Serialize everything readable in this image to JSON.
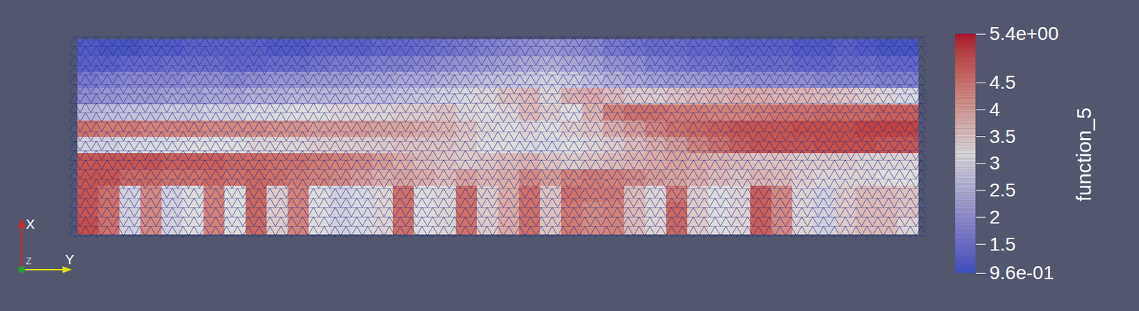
{
  "chart_data": {
    "type": "heatmap",
    "tick_labels": false,
    "triad": {
      "x": "X",
      "y": "Y",
      "z": "Z"
    },
    "colorbar_label": "function_5",
    "colorbar_range": [
      0.96,
      5.4
    ],
    "colorbar_ticks": [
      {
        "value": 5.4,
        "label": "5.4e+00"
      },
      4.5,
      4,
      3.5,
      3,
      2.5,
      2,
      1.5,
      {
        "value": 0.96,
        "label": "9.6e-01"
      }
    ],
    "cells": [
      [
        1.2,
        1.1,
        1.1,
        1.2,
        1.2,
        1.3,
        1.3,
        1.3,
        1.3,
        1.2,
        1.2,
        1.3,
        1.3,
        1.3,
        1.4,
        1.4,
        1.5,
        1.6,
        1.7,
        1.8,
        1.9,
        2.0,
        2.1,
        2.0,
        1.9,
        1.7,
        1.6,
        1.5,
        1.5,
        1.4,
        1.4,
        1.3,
        1.3,
        1.3,
        1.2,
        1.2,
        1.3,
        1.2,
        1.1,
        1.1
      ],
      [
        1.3,
        1.3,
        1.4,
        1.4,
        1.5,
        1.5,
        1.5,
        1.4,
        1.4,
        1.5,
        1.5,
        1.6,
        1.7,
        1.7,
        1.8,
        1.8,
        1.9,
        2.0,
        2.1,
        2.2,
        2.3,
        2.4,
        2.5,
        2.4,
        2.3,
        2.1,
        2.0,
        1.8,
        1.7,
        1.6,
        1.6,
        1.5,
        1.5,
        1.5,
        1.4,
        1.4,
        1.5,
        1.5,
        1.4,
        1.4
      ],
      [
        1.7,
        1.8,
        1.9,
        1.9,
        1.9,
        2.0,
        2.0,
        1.9,
        2.0,
        2.1,
        2.1,
        2.2,
        2.2,
        2.3,
        2.3,
        2.4,
        2.4,
        2.5,
        2.6,
        2.7,
        2.8,
        2.9,
        3.0,
        2.9,
        2.7,
        2.5,
        2.4,
        2.3,
        2.2,
        2.2,
        2.1,
        2.1,
        2.0,
        2.0,
        2.0,
        1.9,
        1.9,
        1.9,
        1.8,
        1.8
      ],
      [
        2.0,
        2.1,
        2.2,
        2.2,
        2.3,
        2.3,
        2.4,
        2.4,
        2.5,
        2.5,
        2.6,
        2.6,
        2.6,
        2.7,
        2.7,
        2.8,
        2.9,
        3.0,
        3.1,
        3.3,
        3.5,
        3.6,
        3.3,
        3.7,
        3.8,
        3.6,
        3.4,
        3.4,
        3.5,
        3.6,
        3.7,
        3.8,
        3.8,
        3.7,
        3.7,
        3.6,
        3.5,
        3.4,
        3.3,
        3.1
      ],
      [
        2.6,
        2.7,
        2.8,
        2.8,
        2.9,
        2.9,
        3.0,
        3.0,
        3.1,
        3.1,
        3.2,
        3.2,
        3.3,
        3.3,
        3.3,
        3.4,
        3.4,
        3.5,
        3.3,
        3.2,
        3.3,
        3.6,
        3.4,
        3.2,
        3.7,
        4.3,
        4.5,
        4.5,
        4.4,
        4.4,
        4.3,
        4.3,
        4.4,
        4.5,
        4.5,
        4.6,
        4.6,
        4.6,
        4.7,
        4.7
      ],
      [
        4.5,
        4.4,
        4.4,
        4.3,
        4.3,
        4.3,
        4.2,
        4.2,
        4.2,
        4.1,
        4.1,
        4.0,
        4.0,
        4.0,
        3.9,
        3.9,
        3.8,
        3.7,
        3.5,
        3.3,
        3.2,
        3.3,
        3.2,
        3.4,
        3.5,
        3.8,
        4.0,
        4.3,
        4.5,
        4.6,
        4.7,
        4.8,
        4.8,
        4.8,
        4.9,
        4.9,
        4.9,
        5.0,
        5.0,
        5.0
      ],
      [
        3.0,
        3.0,
        3.1,
        3.1,
        3.1,
        3.2,
        3.2,
        3.2,
        3.3,
        3.3,
        3.3,
        3.4,
        3.4,
        3.4,
        3.4,
        3.5,
        3.5,
        3.5,
        3.4,
        3.2,
        3.2,
        3.1,
        3.1,
        3.2,
        3.3,
        3.4,
        3.6,
        3.8,
        4.0,
        4.3,
        4.5,
        4.7,
        4.8,
        4.8,
        4.8,
        4.9,
        4.9,
        4.9,
        4.8,
        4.8
      ],
      [
        4.8,
        4.8,
        4.8,
        4.8,
        4.7,
        4.7,
        4.7,
        4.6,
        4.6,
        4.5,
        4.5,
        4.4,
        4.3,
        4.2,
        4.0,
        3.8,
        3.6,
        3.5,
        3.4,
        3.5,
        3.6,
        3.7,
        3.5,
        3.4,
        3.5,
        3.6,
        3.7,
        3.8,
        3.9,
        3.8,
        3.7,
        3.6,
        3.5,
        3.5,
        3.4,
        3.4,
        3.4,
        3.3,
        3.3,
        3.3
      ],
      [
        4.8,
        4.8,
        4.6,
        4.6,
        4.5,
        4.5,
        4.6,
        4.5,
        4.6,
        4.5,
        4.4,
        4.3,
        4.2,
        4.0,
        3.8,
        3.9,
        3.8,
        3.6,
        3.9,
        3.7,
        3.8,
        4.2,
        4.0,
        4.3,
        4.4,
        4.3,
        4.2,
        4.0,
        3.9,
        3.8,
        3.6,
        3.5,
        3.7,
        3.6,
        3.4,
        3.3,
        3.3,
        3.3,
        3.2,
        3.2
      ],
      [
        4.8,
        4.5,
        3.0,
        4.2,
        3.0,
        3.2,
        4.3,
        3.2,
        4.6,
        3.4,
        4.3,
        3.2,
        3.0,
        3.1,
        3.3,
        4.5,
        3.2,
        3.3,
        4.5,
        3.4,
        3.8,
        4.5,
        3.5,
        4.5,
        4.4,
        4.4,
        3.6,
        3.3,
        4.4,
        3.4,
        3.2,
        3.3,
        4.7,
        4.2,
        3.3,
        3.0,
        3.4,
        3.6,
        3.6,
        3.5
      ],
      [
        4.8,
        4.5,
        3.0,
        4.2,
        3.0,
        3.2,
        4.3,
        3.2,
        4.6,
        3.4,
        4.3,
        3.2,
        3.0,
        3.1,
        3.3,
        4.5,
        3.2,
        3.3,
        4.5,
        3.4,
        3.8,
        4.5,
        3.5,
        4.4,
        4.2,
        4.3,
        3.6,
        3.3,
        4.6,
        3.4,
        3.2,
        3.3,
        4.7,
        4.2,
        3.3,
        3.0,
        3.4,
        3.6,
        3.6,
        3.5
      ],
      [
        4.9,
        4.5,
        3.0,
        4.2,
        3.0,
        3.2,
        4.3,
        3.2,
        4.6,
        3.4,
        4.3,
        3.2,
        3.0,
        3.1,
        3.3,
        4.5,
        3.2,
        3.3,
        4.5,
        3.4,
        3.8,
        4.5,
        3.5,
        4.4,
        4.2,
        4.3,
        3.6,
        3.3,
        4.6,
        3.4,
        3.2,
        3.3,
        4.7,
        4.2,
        3.3,
        3.0,
        3.4,
        3.6,
        3.6,
        3.3
      ]
    ]
  }
}
